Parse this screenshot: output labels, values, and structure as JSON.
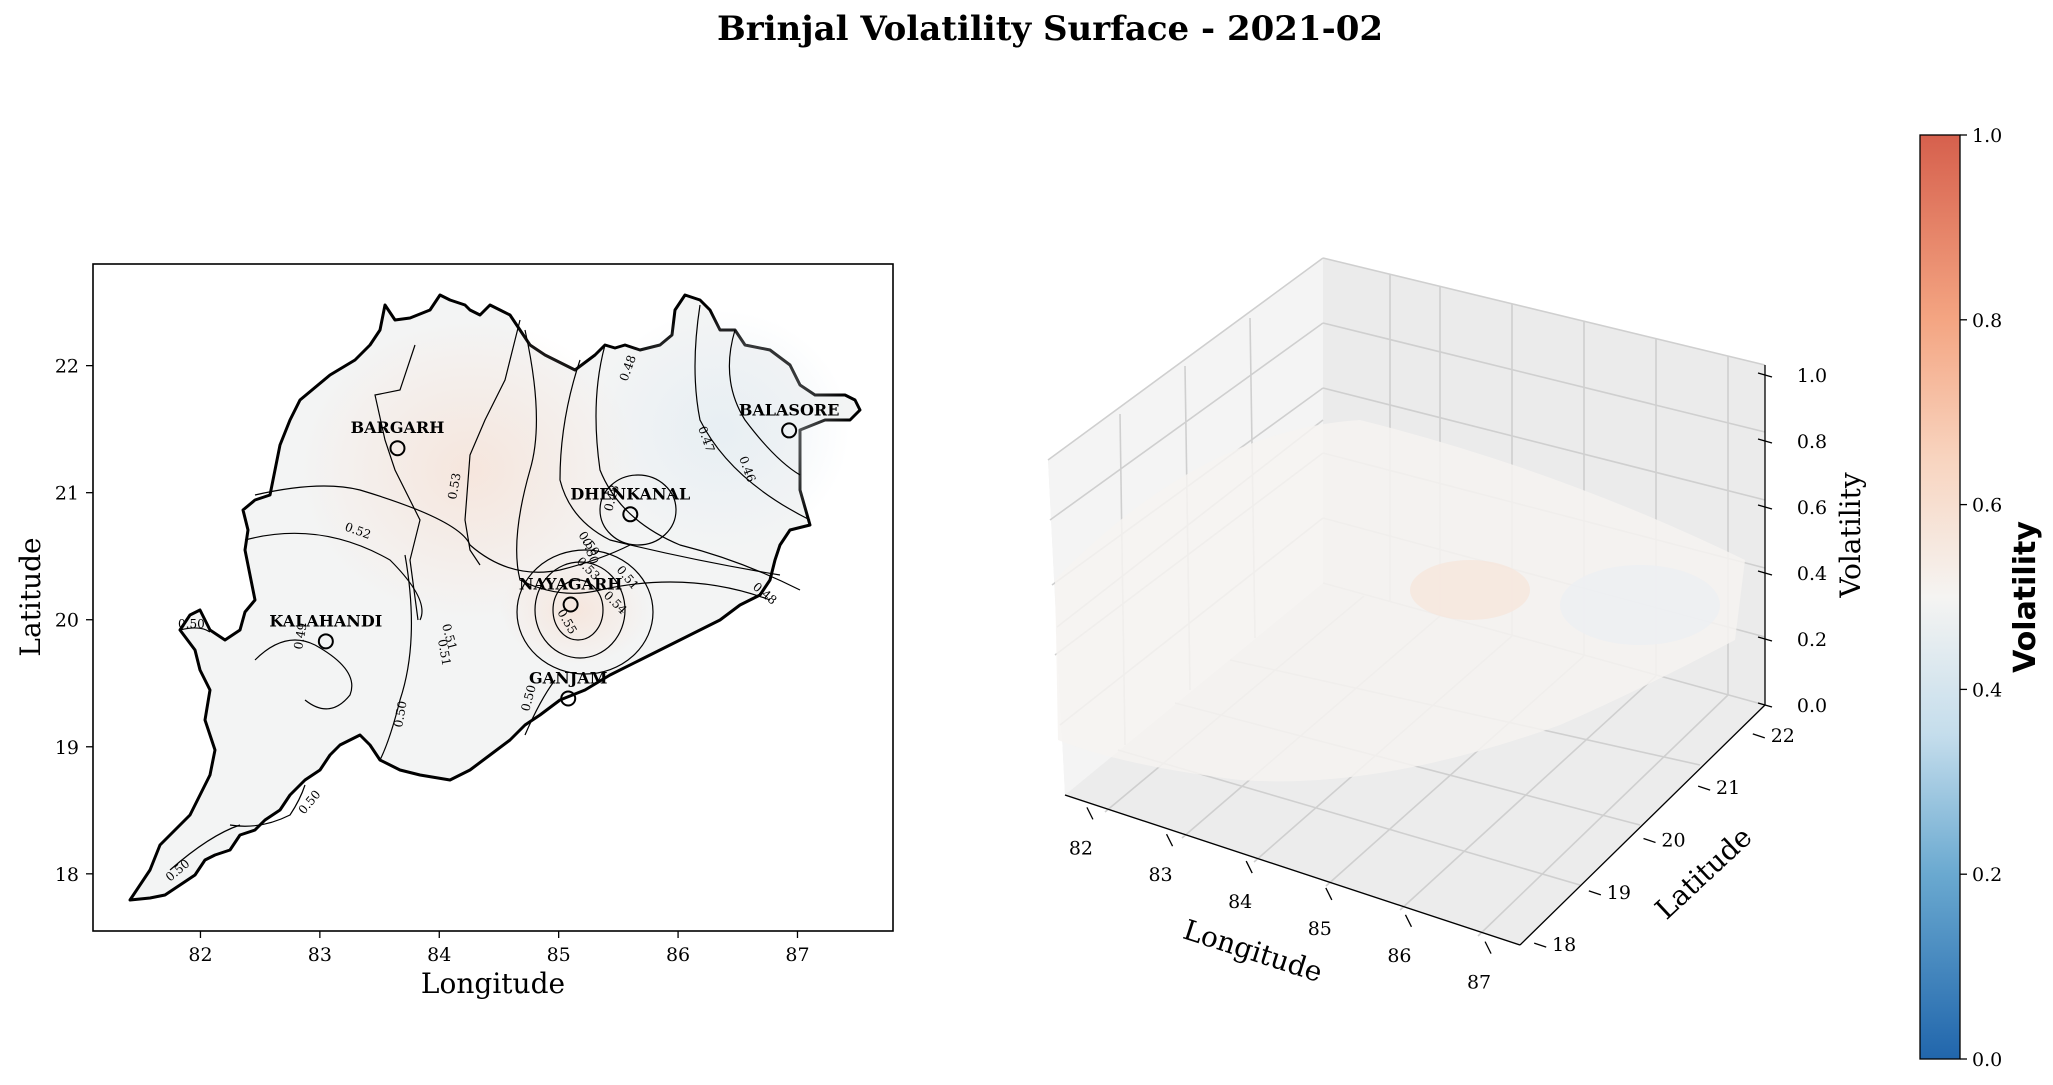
{
  "chart_data": [
    {
      "type": "contour",
      "title": "Brinjal Volatility Surface - 2021-02",
      "xlabel": "Longitude",
      "ylabel": "Latitude",
      "xlim": [
        81.1,
        87.8
      ],
      "ylim": [
        17.55,
        22.8
      ],
      "xticks": [
        82,
        83,
        84,
        85,
        86,
        87
      ],
      "yticks": [
        18,
        19,
        20,
        21,
        22
      ],
      "points": [
        {
          "name": "BARGARH",
          "lon": 83.65,
          "lat": 21.35
        },
        {
          "name": "BALASORE",
          "lon": 86.93,
          "lat": 21.49
        },
        {
          "name": "DHENKANAL",
          "lon": 85.6,
          "lat": 20.83
        },
        {
          "name": "NAYAGARH",
          "lon": 85.1,
          "lat": 20.12
        },
        {
          "name": "KALAHANDI",
          "lon": 83.05,
          "lat": 19.83
        },
        {
          "name": "GANJAM",
          "lon": 85.08,
          "lat": 19.38
        }
      ],
      "contour_labels": [
        "0.53",
        "0.52",
        "0.51",
        "0.50",
        "0.49",
        "0.48",
        "0.47",
        "0.46",
        "0.53",
        "0.54",
        "0.55",
        "0.51",
        "0.50",
        "0.48",
        "0.50",
        "0.51",
        "0.50",
        "0.50",
        "0.50",
        "0.50",
        "0.48"
      ]
    },
    {
      "type": "surface3d",
      "xlabel": "Longitude",
      "ylabel": "Latitude",
      "zlabel": "Volatility",
      "xticks": [
        82,
        83,
        84,
        85,
        86,
        87
      ],
      "yticks": [
        18,
        19,
        20,
        21,
        22
      ],
      "zticks": [
        "0.0",
        "0.2",
        "0.4",
        "0.6",
        "0.8",
        "1.0"
      ],
      "zlim": [
        0,
        1
      ]
    }
  ],
  "colorbar": {
    "label": "Volatility",
    "ticks": [
      "0.0",
      "0.2",
      "0.4",
      "0.6",
      "0.8",
      "1.0"
    ],
    "colors": [
      "#2b7bb9",
      "#91c3df",
      "#f7f6f5",
      "#f4a582",
      "#d6604d"
    ]
  }
}
